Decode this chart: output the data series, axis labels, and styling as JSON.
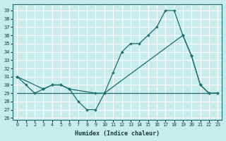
{
  "xlabel": "Humidex (Indice chaleur)",
  "bg_color": "#c8ecec",
  "grid_color": "#ffffff",
  "line_color": "#1a6b6b",
  "xlim": [
    -0.5,
    23.5
  ],
  "ylim": [
    25.8,
    39.8
  ],
  "xticks": [
    0,
    1,
    2,
    3,
    4,
    5,
    6,
    7,
    8,
    9,
    10,
    11,
    12,
    13,
    14,
    15,
    16,
    17,
    18,
    19,
    20,
    21,
    22,
    23
  ],
  "yticks": [
    26,
    27,
    28,
    29,
    30,
    31,
    32,
    33,
    34,
    35,
    36,
    37,
    38,
    39
  ],
  "series": [
    {
      "x": [
        0,
        23
      ],
      "y": [
        29,
        29
      ],
      "markers": false
    },
    {
      "x": [
        0,
        1,
        2,
        3,
        4,
        5,
        6,
        7,
        8,
        9,
        10,
        11,
        12,
        13,
        14,
        15,
        16,
        17,
        18,
        19,
        20,
        21,
        22,
        23
      ],
      "y": [
        31,
        30,
        29,
        29.5,
        30,
        30,
        29.5,
        28,
        27,
        27,
        29,
        31.5,
        34,
        35,
        35,
        36,
        37,
        39,
        39,
        36,
        33.5,
        30,
        29,
        29
      ],
      "markers": true
    },
    {
      "x": [
        0,
        3,
        4,
        5,
        6,
        9,
        10,
        19,
        20,
        21,
        22,
        23
      ],
      "y": [
        31,
        29.5,
        30,
        30,
        29.5,
        29,
        29,
        36,
        33.5,
        30,
        29,
        29
      ],
      "markers": true
    }
  ]
}
